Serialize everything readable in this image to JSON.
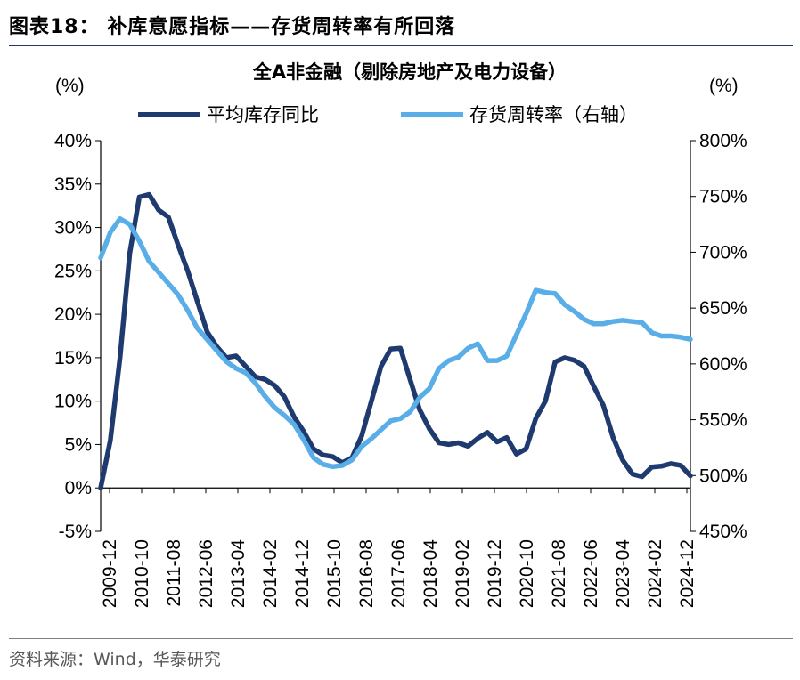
{
  "figure_label": "图表18：  补库意愿指标——存货周转率有所回落",
  "source_note": "资料来源：Wind，华泰研究",
  "colors": {
    "series1": "#1f3a6e",
    "series2": "#5aaee8",
    "axis": "#000000",
    "rule": "#1f3864"
  },
  "chart_data": {
    "type": "line",
    "title": "全A非金融（剔除房地产及电力设备）",
    "ylabel": "(%)",
    "y2label": "(%)",
    "ylim": [
      -5,
      40
    ],
    "y2lim": [
      450,
      800
    ],
    "yticks": [
      "40%",
      "35%",
      "30%",
      "25%",
      "20%",
      "15%",
      "10%",
      "5%",
      "0%",
      "-5%"
    ],
    "y2ticks": [
      "800%",
      "750%",
      "700%",
      "650%",
      "600%",
      "550%",
      "500%",
      "450%"
    ],
    "xticklabels": [
      "2009-12",
      "2010-10",
      "2011-08",
      "2012-06",
      "2013-04",
      "2014-02",
      "2014-12",
      "2015-10",
      "2016-08",
      "2017-06",
      "2018-04",
      "2019-02",
      "2019-12",
      "2020-10",
      "2021-08",
      "2022-06",
      "2023-04",
      "2024-02",
      "2024-12"
    ],
    "legend": [
      "平均库存同比",
      "存货周转率（右轴）"
    ],
    "legend_position": "top",
    "x_count": 62,
    "series": [
      {
        "name": "平均库存同比",
        "axis": "left",
        "values": [
          0,
          5.5,
          15,
          27,
          33.5,
          33.8,
          32,
          31.2,
          28,
          25,
          21.5,
          18,
          16.3,
          15,
          15.2,
          14,
          12.8,
          12.5,
          11.8,
          10.5,
          8.2,
          6.5,
          4.5,
          3.8,
          3.6,
          2.9,
          3.5,
          6,
          10,
          14,
          16,
          16.1,
          12.5,
          9,
          6.8,
          5.2,
          5,
          5.2,
          4.8,
          5.7,
          6.4,
          5.3,
          5.8,
          3.9,
          4.5,
          8,
          10,
          14.5,
          15,
          14.7,
          14,
          11.7,
          9.5,
          5.8,
          3.2,
          1.6,
          1.3,
          2.4,
          2.5,
          2.8,
          2.6,
          1.4
        ]
      },
      {
        "name": "存货周转率（右轴）",
        "axis": "right",
        "values": [
          695,
          718,
          730,
          725,
          710,
          692,
          682,
          672,
          662,
          648,
          632,
          622,
          612,
          602,
          596,
          592,
          583,
          571,
          561,
          554,
          546,
          532,
          516,
          510,
          508,
          509,
          514,
          526,
          533,
          541,
          549,
          551,
          557,
          570,
          578,
          596,
          603,
          606,
          614,
          618,
          603,
          603,
          607,
          626,
          645,
          666,
          664,
          663,
          653,
          647,
          640,
          636,
          636,
          638,
          639,
          638,
          637,
          628,
          625,
          625,
          624,
          622
        ]
      }
    ]
  }
}
